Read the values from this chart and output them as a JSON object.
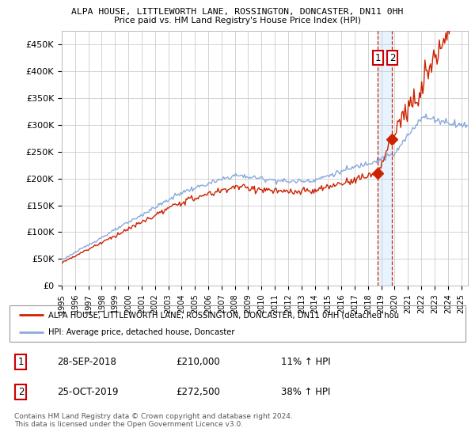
{
  "title1": "ALPA HOUSE, LITTLEWORTH LANE, ROSSINGTON, DONCASTER, DN11 0HH",
  "title2": "Price paid vs. HM Land Registry's House Price Index (HPI)",
  "ylabel_ticks": [
    "£0",
    "£50K",
    "£100K",
    "£150K",
    "£200K",
    "£250K",
    "£300K",
    "£350K",
    "£400K",
    "£450K"
  ],
  "ytick_values": [
    0,
    50000,
    100000,
    150000,
    200000,
    250000,
    300000,
    350000,
    400000,
    450000
  ],
  "xlim_start": 1995.0,
  "xlim_end": 2025.5,
  "ylim": [
    0,
    475000
  ],
  "background_color": "#ffffff",
  "grid_color": "#cccccc",
  "hpi_color": "#88aadd",
  "price_color": "#cc2200",
  "transaction1_date": 2018.74,
  "transaction1_price": 210000,
  "transaction2_date": 2019.82,
  "transaction2_price": 272500,
  "dashed_line_color": "#cc2200",
  "shaded_region_color": "#ddeeff",
  "legend_label1": "ALPA HOUSE, LITTLEWORTH LANE, ROSSINGTON, DONCASTER, DN11 0HH (detached hou",
  "legend_label2": "HPI: Average price, detached house, Doncaster",
  "table_row1": [
    "1",
    "28-SEP-2018",
    "£210,000",
    "11% ↑ HPI"
  ],
  "table_row2": [
    "2",
    "25-OCT-2019",
    "£272,500",
    "38% ↑ HPI"
  ],
  "footnote": "Contains HM Land Registry data © Crown copyright and database right 2024.\nThis data is licensed under the Open Government Licence v3.0."
}
